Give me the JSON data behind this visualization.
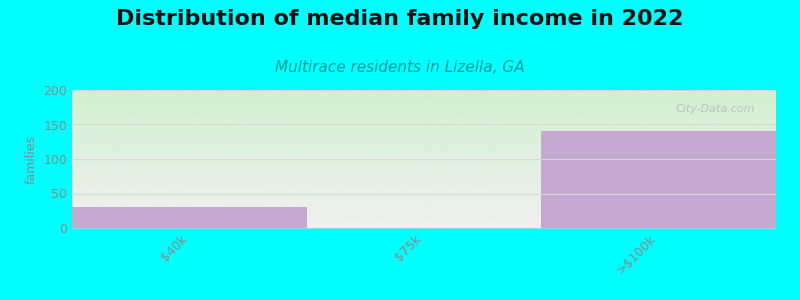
{
  "title": "Distribution of median family income in 2022",
  "subtitle": "Multirace residents in Lizella, GA",
  "categories": [
    "$40k",
    "$75k",
    ">$100k"
  ],
  "values": [
    30,
    0,
    140
  ],
  "bar_color": "#c4a8d0",
  "plot_bg_top": "#f0f0f0",
  "plot_bg_bottom": "#d8f0d0",
  "fig_bg_color": "#00ffff",
  "ylabel": "families",
  "ylim": [
    0,
    200
  ],
  "yticks": [
    0,
    50,
    100,
    150,
    200
  ],
  "title_fontsize": 16,
  "subtitle_fontsize": 11,
  "subtitle_color": "#009999",
  "ylabel_fontsize": 9,
  "tick_color": "#888888",
  "grid_color": "#d8d8d8",
  "watermark": "City-Data.com"
}
